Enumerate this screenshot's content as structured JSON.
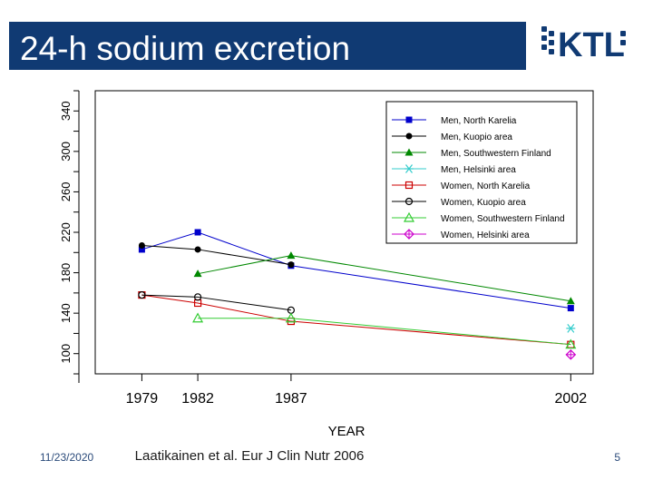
{
  "slide": {
    "title": "24-h sodium excretion",
    "date": "11/23/2020",
    "citation": "Laatikainen et al. Eur J Clin Nutr 2006",
    "page_number": "5",
    "title_bar_color": "#103a73"
  },
  "logo": {
    "text": "KTL",
    "color": "#103a73"
  },
  "chart_data": {
    "type": "line",
    "title": "24-h sodium excretion",
    "xlabel": "YEAR",
    "ylabel": "",
    "xlim": [
      1976.5,
      2003.2
    ],
    "ylim": [
      80,
      360
    ],
    "x_ticks": [
      1979,
      1982,
      1987,
      2002
    ],
    "y_ticks": [
      100,
      140,
      180,
      220,
      260,
      300,
      340
    ],
    "legend_position": "top-right",
    "series": [
      {
        "name": "Men, North Karelia",
        "color": "#0000cc",
        "marker": "square",
        "x": [
          1979,
          1982,
          1987,
          2002
        ],
        "y": [
          203,
          220,
          187,
          145
        ]
      },
      {
        "name": "Men, Kuopio area",
        "color": "#000000",
        "marker": "dot",
        "x": [
          1979,
          1982,
          1987
        ],
        "y": [
          207,
          203,
          188
        ]
      },
      {
        "name": "Men, Southwestern Finland",
        "color": "#008800",
        "marker": "triangle",
        "x": [
          1982,
          1987,
          2002
        ],
        "y": [
          179,
          197,
          152
        ]
      },
      {
        "name": "Men, Helsinki area",
        "color": "#33cccc",
        "marker": "asterisk",
        "x": [
          2002
        ],
        "y": [
          125
        ]
      },
      {
        "name": "Women, North Karelia",
        "color": "#cc0000",
        "marker": "open-square",
        "x": [
          1979,
          1982,
          1987,
          2002
        ],
        "y": [
          158,
          150,
          132,
          109
        ]
      },
      {
        "name": "Women, Kuopio area",
        "color": "#000000",
        "marker": "open-circle",
        "x": [
          1979,
          1982,
          1987
        ],
        "y": [
          158,
          156,
          143
        ]
      },
      {
        "name": "Women, Southwestern Finland",
        "color": "#33cc33",
        "marker": "open-triangle",
        "x": [
          1982,
          1987,
          2002
        ],
        "y": [
          135,
          135,
          109
        ]
      },
      {
        "name": "Women, Helsinki area",
        "color": "#cc00cc",
        "marker": "diamond",
        "x": [
          2002
        ],
        "y": [
          99
        ]
      }
    ]
  }
}
